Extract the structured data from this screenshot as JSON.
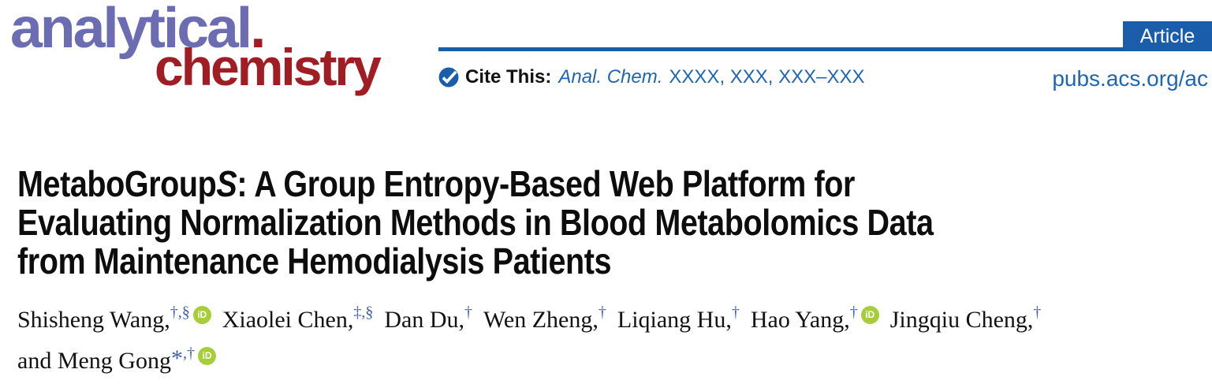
{
  "journal": {
    "name_top": "analytical",
    "name_dot": ".",
    "name_bottom": "chemistry",
    "badge_label": "Article",
    "cite_label": "Cite This:",
    "cite_journal": "Anal. Chem.",
    "cite_pages": "XXXX, XXX, XXX–XXX",
    "site_url": "pubs.acs.org/ac",
    "orcid_label": "iD",
    "colors": {
      "logo_purple": "#6c6cb2",
      "logo_red": "#a11d24",
      "header_blue": "#1a5dab",
      "link_blue": "#1e66b3",
      "superscript_blue": "#3f5fae",
      "orcid_green": "#a6ce39"
    }
  },
  "article": {
    "title": {
      "l1_pre": "MetaboGroup",
      "l1_italic": "S",
      "l1_post": ": A Group Entropy-Based Web Platform for",
      "l2": "Evaluating Normalization Methods in Blood Metabolomics Data",
      "l3": "from Maintenance Hemodialysis Patients"
    },
    "authors_line1": [
      {
        "name": "Shisheng Wang,",
        "sup": "†,§",
        "orcid": true
      },
      {
        "name": "Xiaolei Chen,",
        "sup": "‡,§",
        "orcid": false
      },
      {
        "name": "Dan Du,",
        "sup": "†",
        "orcid": false
      },
      {
        "name": "Wen Zheng,",
        "sup": "†",
        "orcid": false
      },
      {
        "name": "Liqiang Hu,",
        "sup": "†",
        "orcid": false
      },
      {
        "name": "Hao Yang,",
        "sup": "†",
        "orcid": true
      },
      {
        "name": "Jingqiu Cheng,",
        "sup": "†",
        "orcid": false
      }
    ],
    "authors_line2": [
      {
        "name": "and Meng Gong",
        "star": "*",
        "sup": ",†",
        "orcid": true
      }
    ]
  }
}
